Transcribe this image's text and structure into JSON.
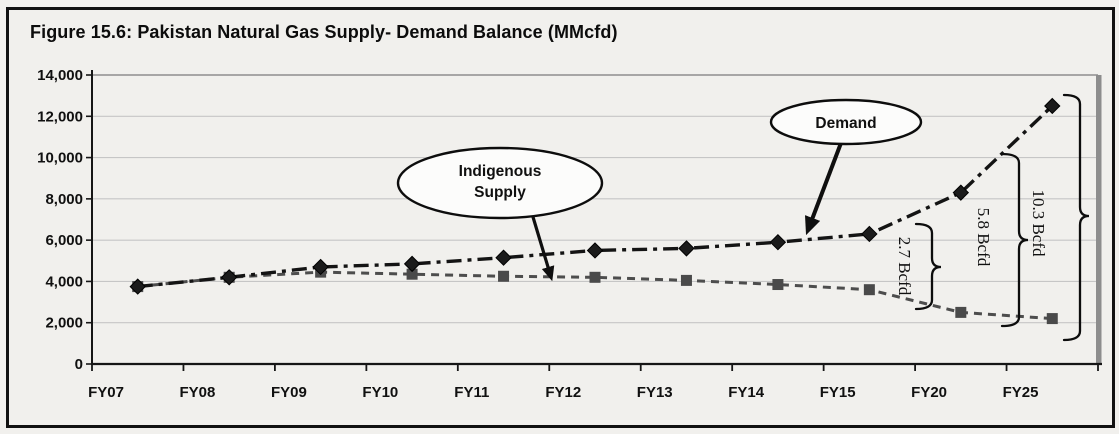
{
  "figure": {
    "title": "Figure 15.6: Pakistan Natural Gas Supply- Demand Balance (MMcfd)"
  },
  "chart_data": {
    "type": "line",
    "title": "Figure 15.6: Pakistan Natural Gas Supply- Demand Balance (MMcfd)",
    "unit": "MMcfd",
    "categories": [
      "FY07",
      "FY08",
      "FY09",
      "FY10",
      "FY11",
      "FY12",
      "FY13",
      "FY14",
      "FY15",
      "FY20",
      "FY25"
    ],
    "series": [
      {
        "name": "Demand",
        "marker": "diamond",
        "line_style": "dash-dot",
        "color": "#141414",
        "values": [
          3750,
          4200,
          4700,
          4850,
          5150,
          5500,
          5600,
          5900,
          6300,
          8300,
          12500
        ]
      },
      {
        "name": "Indigenous Supply",
        "marker": "square",
        "line_style": "dashed",
        "color": "#4d4d4d",
        "values": [
          3750,
          4200,
          4450,
          4350,
          4250,
          4200,
          4050,
          3850,
          3600,
          2500,
          2200
        ]
      }
    ],
    "ylim": [
      0,
      14000
    ],
    "y_tick_step": 2000,
    "y_tick_labels": [
      "0",
      "2,000",
      "4,000",
      "6,000",
      "8,000",
      "10,000",
      "12,000",
      "14,000"
    ],
    "xlabel": "",
    "ylabel": "",
    "grid": "horizontal",
    "legend_position": "none",
    "annotations": {
      "callouts": [
        {
          "label_lines": [
            "Indigenous",
            "Supply"
          ],
          "points_to": "Indigenous Supply line near FY12"
        },
        {
          "label_lines": [
            "Demand"
          ],
          "points_to": "Demand line near FY14"
        }
      ],
      "gap_braces": [
        {
          "category": "FY15",
          "label": "2.7 Bcfd"
        },
        {
          "category": "FY20",
          "label": "5.8 Bcfd"
        },
        {
          "category": "FY25",
          "label": "10.3 Bcfd"
        }
      ]
    }
  },
  "colors": {
    "background": "#f1f0ed",
    "gridline": "#c6c6c6",
    "axis": "#161616",
    "right_wall": "#8d8d8d",
    "demand_line": "#141414",
    "supply_line": "#4d4d4d",
    "annotation_ink": "#0f0f0f",
    "oval_fill": "#fcfcfb"
  }
}
